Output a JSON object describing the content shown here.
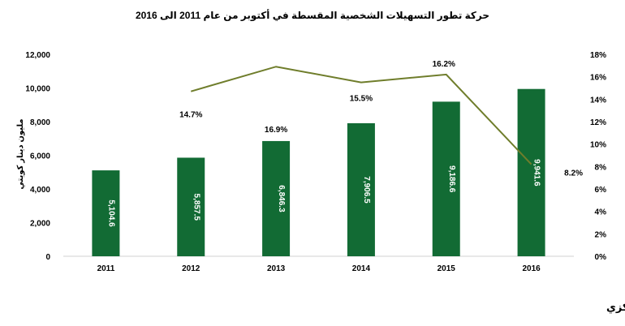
{
  "title": "حركة تطور التسهيلات الشخصية المقسطة في أكتوبر من عام 2011 الى 2016",
  "source": "المصدر: بنك الكويت المركزي",
  "colors": {
    "bar": "#126b34",
    "line": "#6f7d2b"
  },
  "chart_data": {
    "type": "bar",
    "categories": [
      "2011",
      "2012",
      "2013",
      "2014",
      "2015",
      "2016"
    ],
    "series": [
      {
        "type": "bar",
        "axis": "left",
        "values": [
          5104.6,
          5857.5,
          6846.3,
          7906.5,
          9186.6,
          9941.6
        ],
        "labels": [
          "5,104.6",
          "5,857.5",
          "6,846.3",
          "7,906.5",
          "9,186.6",
          "9,941.6"
        ]
      },
      {
        "type": "line",
        "axis": "right",
        "x": [
          "2012",
          "2013",
          "2014",
          "2015",
          "2016"
        ],
        "values": [
          14.7,
          16.9,
          15.5,
          16.2,
          8.2
        ],
        "labels": [
          "14.7%",
          "16.9%",
          "15.5%",
          "16.2%",
          "8.2%"
        ]
      }
    ],
    "ylabel": "مليون دينار كويتي",
    "ylim": [
      0,
      12000
    ],
    "yticks": [
      "0",
      "2,000",
      "4,000",
      "6,000",
      "8,000",
      "10,000",
      "12,000"
    ],
    "y2lim": [
      0,
      18
    ],
    "y2ticks": [
      "0%",
      "2%",
      "4%",
      "6%",
      "8%",
      "10%",
      "12%",
      "14%",
      "16%",
      "18%"
    ],
    "grid": false,
    "legend": "none"
  }
}
